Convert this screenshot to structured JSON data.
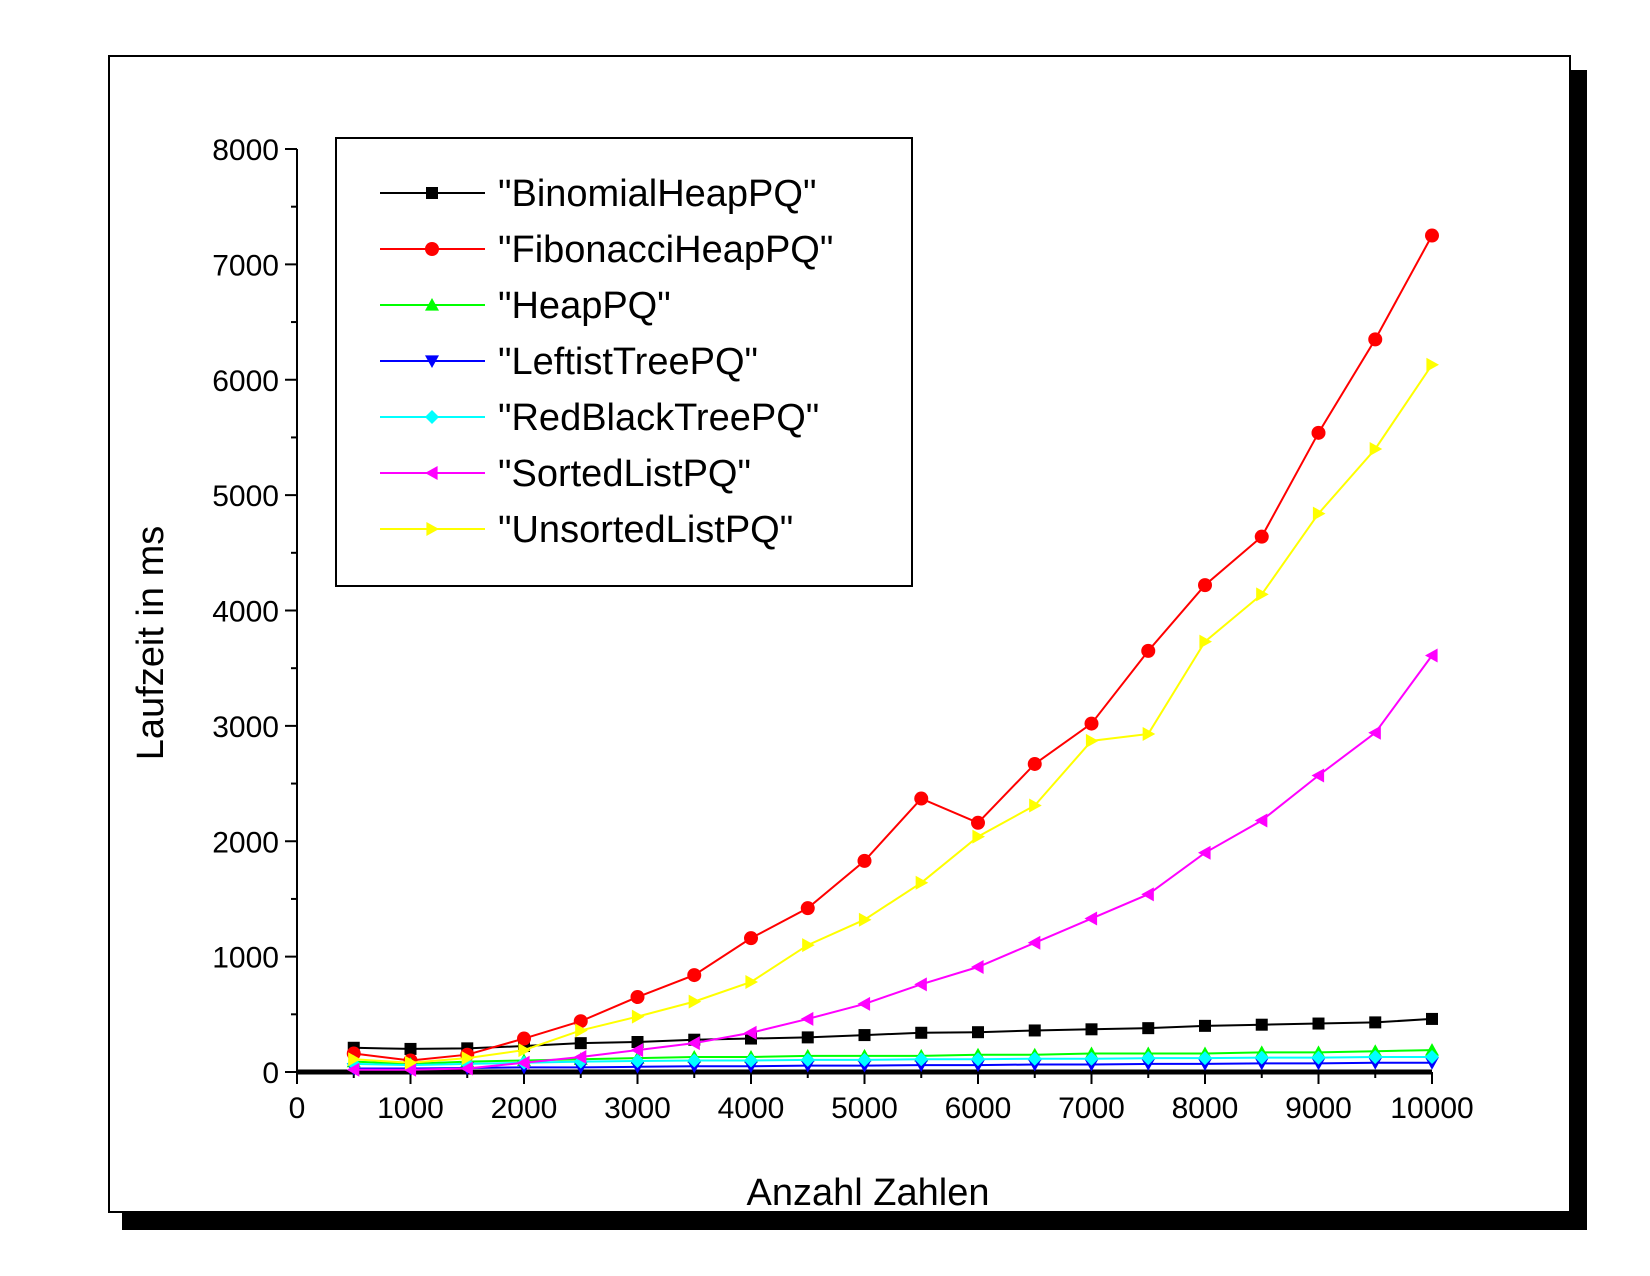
{
  "chart_data": {
    "type": "line",
    "title": "",
    "xlabel": "Anzahl Zahlen",
    "ylabel": "Laufzeit in ms",
    "xlim": [
      0,
      10000
    ],
    "ylim": [
      0,
      8000
    ],
    "x_ticks": [
      "0",
      "1000",
      "2000",
      "3000",
      "4000",
      "5000",
      "6000",
      "7000",
      "8000",
      "9000",
      "10000"
    ],
    "y_ticks": [
      "0",
      "1000",
      "2000",
      "3000",
      "4000",
      "5000",
      "6000",
      "7000",
      "8000"
    ],
    "legend_position": "top-left",
    "grid": false,
    "x": [
      500,
      1000,
      1500,
      2000,
      2500,
      3000,
      3500,
      4000,
      4500,
      5000,
      5500,
      6000,
      6500,
      7000,
      7500,
      8000,
      8500,
      9000,
      9500,
      10000
    ],
    "series": [
      {
        "name": "\"BinomialHeapPQ\"",
        "color": "#000000",
        "marker": "square",
        "values": [
          210,
          200,
          205,
          225,
          250,
          260,
          280,
          290,
          300,
          320,
          340,
          345,
          360,
          370,
          380,
          400,
          410,
          420,
          430,
          460
        ]
      },
      {
        "name": "\"FibonacciHeapPQ\"",
        "color": "#ff0000",
        "marker": "circle",
        "values": [
          160,
          100,
          150,
          290,
          440,
          650,
          840,
          1160,
          1420,
          1830,
          2370,
          2160,
          2670,
          3020,
          3650,
          4220,
          4640,
          5540,
          6350,
          7250
        ]
      },
      {
        "name": "\"HeapPQ\"",
        "color": "#00ff00",
        "marker": "triangle-up",
        "values": [
          90,
          70,
          90,
          100,
          110,
          120,
          130,
          130,
          140,
          140,
          140,
          150,
          150,
          160,
          160,
          160,
          170,
          170,
          180,
          190
        ]
      },
      {
        "name": "\"LeftistTreePQ\"",
        "color": "#0000ff",
        "marker": "triangle-down",
        "values": [
          30,
          30,
          35,
          40,
          40,
          45,
          50,
          50,
          55,
          55,
          60,
          60,
          65,
          65,
          70,
          70,
          75,
          75,
          80,
          80
        ]
      },
      {
        "name": "\"RedBlackTreePQ\"",
        "color": "#00ffff",
        "marker": "diamond",
        "values": [
          70,
          60,
          70,
          80,
          90,
          95,
          100,
          100,
          105,
          105,
          110,
          110,
          115,
          115,
          120,
          120,
          125,
          125,
          130,
          130
        ]
      },
      {
        "name": "\"SortedListPQ\"",
        "color": "#ff00ff",
        "marker": "triangle-left",
        "values": [
          20,
          20,
          30,
          80,
          130,
          190,
          250,
          340,
          460,
          590,
          760,
          910,
          1120,
          1330,
          1540,
          1900,
          2180,
          2570,
          2940,
          3610
        ]
      },
      {
        "name": "\"UnsortedListPQ\"",
        "color": "#ffff00",
        "marker": "triangle-right",
        "values": [
          110,
          80,
          120,
          190,
          360,
          480,
          610,
          780,
          1100,
          1320,
          1640,
          2040,
          2310,
          2870,
          2930,
          3730,
          4140,
          4840,
          5400,
          6130
        ]
      }
    ]
  }
}
